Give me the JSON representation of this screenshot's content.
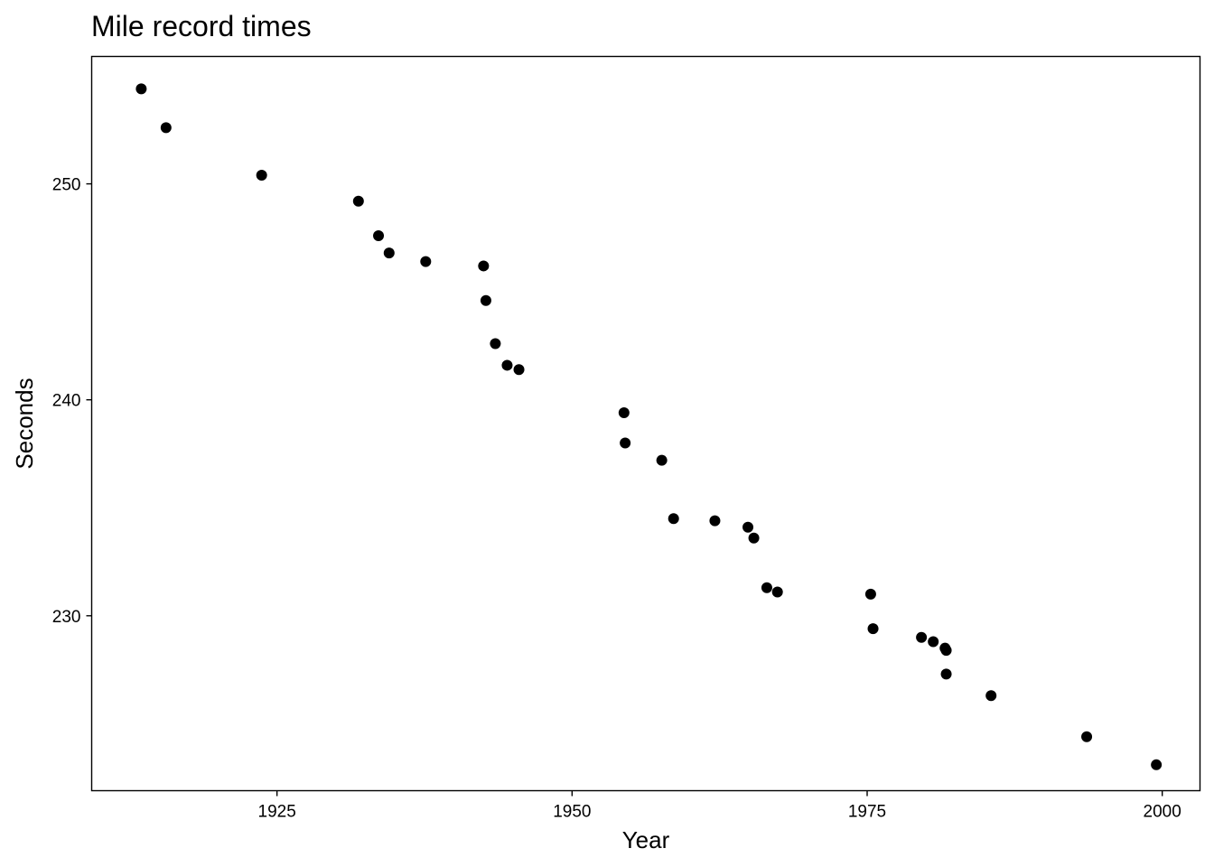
{
  "chart_data": {
    "type": "scatter",
    "title": "Mile record times",
    "xlabel": "Year",
    "ylabel": "Seconds",
    "xlim": [
      1909.3,
      2003.2
    ],
    "ylim": [
      221.9,
      255.9
    ],
    "xticks": [
      1925,
      1950,
      1975,
      2000
    ],
    "yticks": [
      230,
      240,
      250
    ],
    "grid": false,
    "legend": "none",
    "point_color": "#000000",
    "points": [
      {
        "x": 1913.5,
        "y": 254.4
      },
      {
        "x": 1915.6,
        "y": 252.6
      },
      {
        "x": 1923.7,
        "y": 250.4
      },
      {
        "x": 1931.9,
        "y": 249.2
      },
      {
        "x": 1933.6,
        "y": 247.6
      },
      {
        "x": 1934.5,
        "y": 246.8
      },
      {
        "x": 1937.6,
        "y": 246.4
      },
      {
        "x": 1942.5,
        "y": 246.2
      },
      {
        "x": 1942.7,
        "y": 244.6
      },
      {
        "x": 1943.5,
        "y": 242.6
      },
      {
        "x": 1944.5,
        "y": 241.6
      },
      {
        "x": 1945.5,
        "y": 241.4
      },
      {
        "x": 1954.4,
        "y": 239.4
      },
      {
        "x": 1954.5,
        "y": 238.0
      },
      {
        "x": 1957.6,
        "y": 237.2
      },
      {
        "x": 1958.6,
        "y": 234.5
      },
      {
        "x": 1962.1,
        "y": 234.4
      },
      {
        "x": 1964.9,
        "y": 234.1
      },
      {
        "x": 1965.4,
        "y": 233.6
      },
      {
        "x": 1966.5,
        "y": 231.3
      },
      {
        "x": 1967.4,
        "y": 231.1
      },
      {
        "x": 1975.3,
        "y": 231.0
      },
      {
        "x": 1975.5,
        "y": 229.4
      },
      {
        "x": 1979.6,
        "y": 229.0
      },
      {
        "x": 1980.6,
        "y": 228.8
      },
      {
        "x": 1981.6,
        "y": 228.5
      },
      {
        "x": 1981.7,
        "y": 228.4
      },
      {
        "x": 1981.7,
        "y": 227.3
      },
      {
        "x": 1985.5,
        "y": 226.3
      },
      {
        "x": 1993.6,
        "y": 224.4
      },
      {
        "x": 1999.5,
        "y": 223.1
      }
    ]
  }
}
